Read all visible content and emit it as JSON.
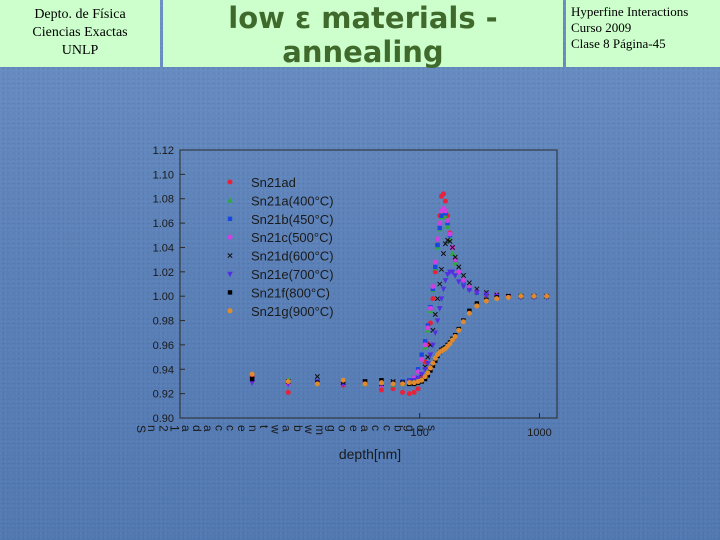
{
  "header": {
    "left_lines": [
      "Depto. de Física",
      "Ciencias Exactas",
      "UNLP"
    ],
    "title_lines": [
      "low ε materials -",
      "annealing"
    ],
    "right_lines": [
      "Hyperfine Interactions",
      "Curso 2009",
      "Clase 8  Página-45"
    ]
  },
  "colors": {
    "background": "#5b82b8",
    "header_box": "#ccffcc",
    "title_text": "#3f6a2c"
  },
  "chart_data": {
    "type": "scatter",
    "xlabel": "depth[nm]",
    "ylabel": "",
    "x_scale": "log",
    "xlim": [
      1,
      1400
    ],
    "ylim": [
      0.9,
      1.12
    ],
    "x_ticks": [
      100,
      1000
    ],
    "y_ticks": [
      "0.90",
      "0.92",
      "0.94",
      "0.96",
      "0.98",
      "1.00",
      "1.02",
      "1.04",
      "1.06",
      "1.08",
      "1.10",
      "1.12"
    ],
    "legend_position": "top-left",
    "overlapping_rotated_labels": [
      "S",
      "n",
      "2",
      "1",
      "a",
      "d",
      "a",
      "c",
      "c",
      "e",
      "n",
      "t",
      "w",
      "a",
      "b",
      "w",
      "m",
      "g",
      "o",
      "e",
      "a",
      "c",
      "c",
      "b",
      "g",
      "o",
      "s"
    ],
    "series": [
      {
        "name": "Sn21ad",
        "color": "#e8223a",
        "marker": "circle",
        "points": [
          [
            4,
            0.934
          ],
          [
            8,
            0.921
          ],
          [
            14,
            0.929
          ],
          [
            23,
            0.927
          ],
          [
            35,
            0.928
          ],
          [
            48,
            0.923
          ],
          [
            60,
            0.924
          ],
          [
            72,
            0.921
          ],
          [
            82,
            0.92
          ],
          [
            90,
            0.921
          ],
          [
            97,
            0.924
          ],
          [
            104,
            0.935
          ],
          [
            111,
            0.946
          ],
          [
            117,
            0.961
          ],
          [
            123,
            0.978
          ],
          [
            129,
            0.998
          ],
          [
            135,
            1.02
          ],
          [
            141,
            1.042
          ],
          [
            147,
            1.066
          ],
          [
            152,
            1.082
          ],
          [
            158,
            1.084
          ],
          [
            164,
            1.078
          ],
          [
            171,
            1.066
          ],
          [
            179,
            1.052
          ],
          [
            188,
            1.04
          ],
          [
            198,
            1.03
          ],
          [
            212,
            1.02
          ],
          [
            232,
            1.013
          ],
          [
            260,
            1.007
          ],
          [
            300,
            1.003
          ],
          [
            360,
            1.001
          ],
          [
            440,
            1.0
          ],
          [
            550,
            1.0
          ],
          [
            700,
            1.0
          ],
          [
            900,
            1.0
          ],
          [
            1150,
            1.0
          ]
        ]
      },
      {
        "name": "Sn21a(400°C)",
        "color": "#2eaa3c",
        "marker": "triangle-up",
        "points": [
          [
            4,
            0.93
          ],
          [
            8,
            0.931
          ],
          [
            14,
            0.928
          ],
          [
            23,
            0.93
          ],
          [
            35,
            0.928
          ],
          [
            48,
            0.93
          ],
          [
            60,
            0.927
          ],
          [
            72,
            0.928
          ],
          [
            82,
            0.929
          ],
          [
            90,
            0.932
          ],
          [
            97,
            0.938
          ],
          [
            104,
            0.948
          ],
          [
            111,
            0.958
          ],
          [
            117,
            0.972
          ],
          [
            123,
            0.988
          ],
          [
            129,
            1.005
          ],
          [
            135,
            1.023
          ],
          [
            141,
            1.04
          ],
          [
            147,
            1.055
          ],
          [
            152,
            1.065
          ],
          [
            158,
            1.068
          ],
          [
            164,
            1.065
          ],
          [
            171,
            1.057
          ],
          [
            179,
            1.046
          ],
          [
            188,
            1.035
          ],
          [
            198,
            1.027
          ],
          [
            212,
            1.02
          ],
          [
            232,
            1.013
          ],
          [
            260,
            1.007
          ],
          [
            300,
            1.003
          ],
          [
            360,
            1.002
          ],
          [
            440,
            1.0
          ],
          [
            550,
            1.0
          ],
          [
            700,
            1.001
          ],
          [
            900,
            1.0
          ],
          [
            1150,
            1.0
          ]
        ]
      },
      {
        "name": "Sn21b(450°C)",
        "color": "#1848e0",
        "marker": "square",
        "points": [
          [
            4,
            0.931
          ],
          [
            8,
            0.929
          ],
          [
            14,
            0.93
          ],
          [
            23,
            0.928
          ],
          [
            35,
            0.929
          ],
          [
            48,
            0.93
          ],
          [
            60,
            0.928
          ],
          [
            72,
            0.93
          ],
          [
            82,
            0.931
          ],
          [
            90,
            0.933
          ],
          [
            97,
            0.94
          ],
          [
            104,
            0.952
          ],
          [
            111,
            0.963
          ],
          [
            117,
            0.976
          ],
          [
            123,
            0.991
          ],
          [
            129,
            1.006
          ],
          [
            135,
            1.024
          ],
          [
            141,
            1.042
          ],
          [
            147,
            1.056
          ],
          [
            152,
            1.066
          ],
          [
            158,
            1.07
          ],
          [
            164,
            1.068
          ],
          [
            171,
            1.06
          ],
          [
            179,
            1.05
          ],
          [
            188,
            1.04
          ],
          [
            198,
            1.03
          ],
          [
            212,
            1.02
          ],
          [
            232,
            1.012
          ],
          [
            260,
            1.006
          ],
          [
            300,
            1.003
          ],
          [
            360,
            1.002
          ],
          [
            440,
            1.0
          ],
          [
            550,
            1.0
          ],
          [
            700,
            1.0
          ],
          [
            900,
            1.0
          ],
          [
            1150,
            1.0
          ]
        ]
      },
      {
        "name": "Sn21c(500°C)",
        "color": "#d040e0",
        "marker": "circle",
        "points": [
          [
            4,
            0.93
          ],
          [
            8,
            0.928
          ],
          [
            14,
            0.929
          ],
          [
            23,
            0.928
          ],
          [
            35,
            0.929
          ],
          [
            48,
            0.927
          ],
          [
            60,
            0.928
          ],
          [
            72,
            0.928
          ],
          [
            82,
            0.93
          ],
          [
            90,
            0.933
          ],
          [
            97,
            0.938
          ],
          [
            104,
            0.948
          ],
          [
            111,
            0.96
          ],
          [
            117,
            0.974
          ],
          [
            123,
            0.99
          ],
          [
            129,
            1.008
          ],
          [
            135,
            1.028
          ],
          [
            141,
            1.047
          ],
          [
            147,
            1.06
          ],
          [
            152,
            1.07
          ],
          [
            158,
            1.072
          ],
          [
            164,
            1.07
          ],
          [
            171,
            1.062
          ],
          [
            179,
            1.051
          ],
          [
            188,
            1.04
          ],
          [
            198,
            1.03
          ],
          [
            212,
            1.02
          ],
          [
            232,
            1.013
          ],
          [
            260,
            1.007
          ],
          [
            300,
            1.004
          ],
          [
            360,
            1.002
          ],
          [
            440,
            1.001
          ],
          [
            550,
            1.0
          ],
          [
            700,
            1.0
          ],
          [
            900,
            1.0
          ],
          [
            1150,
            1.0
          ]
        ]
      },
      {
        "name": "Sn21d(600°C)",
        "color": "#101010",
        "marker": "cross",
        "points": [
          [
            4,
            0.932
          ],
          [
            8,
            0.93
          ],
          [
            14,
            0.934
          ],
          [
            23,
            0.929
          ],
          [
            35,
            0.93
          ],
          [
            48,
            0.928
          ],
          [
            60,
            0.93
          ],
          [
            72,
            0.929
          ],
          [
            82,
            0.93
          ],
          [
            90,
            0.93
          ],
          [
            97,
            0.932
          ],
          [
            104,
            0.936
          ],
          [
            111,
            0.942
          ],
          [
            117,
            0.95
          ],
          [
            123,
            0.96
          ],
          [
            129,
            0.972
          ],
          [
            135,
            0.985
          ],
          [
            141,
            0.998
          ],
          [
            147,
            1.01
          ],
          [
            152,
            1.022
          ],
          [
            158,
            1.035
          ],
          [
            164,
            1.043
          ],
          [
            171,
            1.046
          ],
          [
            179,
            1.045
          ],
          [
            188,
            1.04
          ],
          [
            198,
            1.032
          ],
          [
            212,
            1.024
          ],
          [
            232,
            1.017
          ],
          [
            260,
            1.011
          ],
          [
            300,
            1.006
          ],
          [
            360,
            1.003
          ],
          [
            440,
            1.001
          ],
          [
            550,
            1.0
          ],
          [
            700,
            1.0
          ],
          [
            900,
            1.0
          ],
          [
            1150,
            1.0
          ]
        ]
      },
      {
        "name": "Sn21e(700°C)",
        "color": "#5030e0",
        "marker": "triangle-down",
        "points": [
          [
            4,
            0.929
          ],
          [
            8,
            0.928
          ],
          [
            14,
            0.93
          ],
          [
            23,
            0.928
          ],
          [
            35,
            0.929
          ],
          [
            48,
            0.928
          ],
          [
            60,
            0.928
          ],
          [
            72,
            0.929
          ],
          [
            82,
            0.93
          ],
          [
            90,
            0.931
          ],
          [
            97,
            0.933
          ],
          [
            104,
            0.936
          ],
          [
            111,
            0.94
          ],
          [
            117,
            0.945
          ],
          [
            123,
            0.952
          ],
          [
            129,
            0.96
          ],
          [
            135,
            0.97
          ],
          [
            141,
            0.98
          ],
          [
            147,
            0.99
          ],
          [
            152,
            0.998
          ],
          [
            158,
            1.006
          ],
          [
            164,
            1.013
          ],
          [
            171,
            1.018
          ],
          [
            179,
            1.02
          ],
          [
            188,
            1.02
          ],
          [
            198,
            1.017
          ],
          [
            212,
            1.012
          ],
          [
            232,
            1.008
          ],
          [
            260,
            1.005
          ],
          [
            300,
            1.003
          ],
          [
            360,
            1.001
          ],
          [
            440,
            1.0
          ],
          [
            550,
            1.0
          ],
          [
            700,
            0.999
          ],
          [
            900,
            0.999
          ],
          [
            1150,
            0.999
          ]
        ]
      },
      {
        "name": "Sn21f(800°C)",
        "color": "#000000",
        "marker": "square",
        "points": [
          [
            4,
            0.932
          ],
          [
            8,
            0.93
          ],
          [
            14,
            0.929
          ],
          [
            23,
            0.93
          ],
          [
            35,
            0.93
          ],
          [
            48,
            0.931
          ],
          [
            60,
            0.929
          ],
          [
            72,
            0.929
          ],
          [
            82,
            0.928
          ],
          [
            90,
            0.928
          ],
          [
            97,
            0.929
          ],
          [
            104,
            0.93
          ],
          [
            111,
            0.932
          ],
          [
            117,
            0.935
          ],
          [
            123,
            0.939
          ],
          [
            129,
            0.943
          ],
          [
            135,
            0.947
          ],
          [
            141,
            0.951
          ],
          [
            147,
            0.954
          ],
          [
            152,
            0.956
          ],
          [
            158,
            0.957
          ],
          [
            164,
            0.958
          ],
          [
            171,
            0.96
          ],
          [
            179,
            0.962
          ],
          [
            188,
            0.965
          ],
          [
            198,
            0.968
          ],
          [
            212,
            0.973
          ],
          [
            232,
            0.98
          ],
          [
            260,
            0.988
          ],
          [
            300,
            0.994
          ],
          [
            360,
            0.997
          ],
          [
            440,
            0.999
          ],
          [
            550,
            1.0
          ],
          [
            700,
            1.0
          ],
          [
            900,
            1.0
          ],
          [
            1150,
            1.0
          ]
        ]
      },
      {
        "name": "Sn21g(900°C)",
        "color": "#e08a30",
        "marker": "circle",
        "points": [
          [
            4,
            0.936
          ],
          [
            8,
            0.93
          ],
          [
            14,
            0.928
          ],
          [
            23,
            0.931
          ],
          [
            35,
            0.928
          ],
          [
            48,
            0.929
          ],
          [
            60,
            0.928
          ],
          [
            72,
            0.928
          ],
          [
            82,
            0.929
          ],
          [
            90,
            0.929
          ],
          [
            97,
            0.93
          ],
          [
            104,
            0.931
          ],
          [
            111,
            0.934
          ],
          [
            117,
            0.937
          ],
          [
            123,
            0.941
          ],
          [
            129,
            0.945
          ],
          [
            135,
            0.949
          ],
          [
            141,
            0.952
          ],
          [
            147,
            0.954
          ],
          [
            152,
            0.955
          ],
          [
            158,
            0.956
          ],
          [
            164,
            0.957
          ],
          [
            171,
            0.959
          ],
          [
            179,
            0.961
          ],
          [
            188,
            0.964
          ],
          [
            198,
            0.967
          ],
          [
            212,
            0.972
          ],
          [
            232,
            0.979
          ],
          [
            260,
            0.986
          ],
          [
            300,
            0.992
          ],
          [
            360,
            0.996
          ],
          [
            440,
            0.998
          ],
          [
            550,
            0.999
          ],
          [
            700,
            1.0
          ],
          [
            900,
            1.0
          ],
          [
            1150,
            1.0
          ]
        ]
      }
    ]
  }
}
